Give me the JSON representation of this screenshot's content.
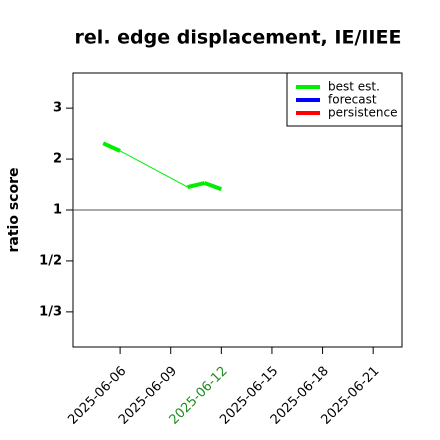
{
  "chart_data": {
    "type": "line",
    "title": "rel. edge displacement, IE/IIEE",
    "y_label": "ratio score",
    "yscale": "symmetric-ratio",
    "x": [
      "2025-06-05",
      "2025-06-06",
      "2025-06-10",
      "2025-06-11",
      "2025-06-12"
    ],
    "series": [
      {
        "name": "best est.",
        "color": "#00ee00",
        "values": [
          2.31,
          2.16,
          1.45,
          1.53,
          1.41
        ]
      },
      {
        "name": "forecast",
        "color": "#0000ff",
        "values": [
          null,
          null,
          null,
          null,
          null
        ]
      },
      {
        "name": "persistence",
        "color": "#ff0000",
        "values": [
          null,
          null,
          null,
          null,
          null
        ]
      }
    ],
    "xlim": [
      "2025-06-03T05:00",
      "2025-06-22T17:00"
    ],
    "xticks": [
      "2025-06-06",
      "2025-06-09",
      "2025-06-12",
      "2025-06-15",
      "2025-06-18",
      "2025-06-21"
    ],
    "highlight_xtick_index": 2,
    "highlight_color": "#228b22",
    "ylim": [
      0.271,
      3.69
    ],
    "yticks": [
      3,
      2,
      1,
      {
        "value": 0.5,
        "label": "1/2"
      },
      {
        "value": 0.3333,
        "label": "1/3"
      }
    ],
    "hline": 1,
    "legend": "top-right"
  }
}
